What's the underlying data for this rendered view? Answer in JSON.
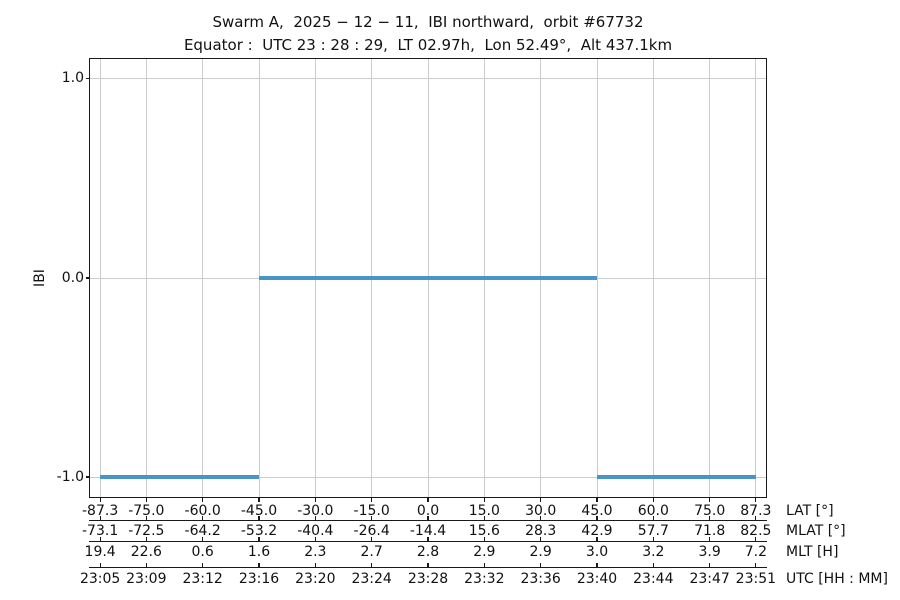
{
  "title": "Swarm A,  2025 − 12 − 11,  IBI northward,  orbit #67732",
  "subtitle": "Equator :  UTC 23 : 28 : 29,  LT 02.97h,  Lon 52.49°,  Alt 437.1km",
  "chart_data": {
    "type": "line",
    "title": "Swarm A,  2025 − 12 − 11,  IBI northward,  orbit #67732",
    "subtitle": "Equator :  UTC 23 : 28 : 29,  LT 02.97h,  Lon 52.49°,  Alt 437.1km",
    "ylabel": "IBI",
    "xlim": [
      -90,
      90
    ],
    "ylim": [
      -1.1,
      1.1
    ],
    "grid": true,
    "legend": "none",
    "colors": {
      "line": "#4a95c8",
      "grid": "#cccccc",
      "spine": "#1a1a1a",
      "text": "#111111",
      "background": "#ffffff"
    },
    "yticks": [
      {
        "value": 1.0,
        "label": "1.0"
      },
      {
        "value": 0.0,
        "label": "0.0"
      },
      {
        "value": -1.0,
        "label": "-1.0"
      }
    ],
    "segments": [
      {
        "y": -1.0,
        "x_start": -87.3,
        "x_end": -45.0
      },
      {
        "y": 0.0,
        "x_start": -45.0,
        "x_end": 45.0
      },
      {
        "y": -1.0,
        "x_start": 45.0,
        "x_end": 87.3
      }
    ],
    "x_ticks": [
      -87.3,
      -75.0,
      -60.0,
      -45.0,
      -30.0,
      -15.0,
      0.0,
      15.0,
      30.0,
      45.0,
      60.0,
      75.0,
      87.3
    ],
    "x_axis_rows": [
      {
        "name": "LAT [°]",
        "labels": [
          "-87.3",
          "-75.0",
          "-60.0",
          "-45.0",
          "-30.0",
          "-15.0",
          "0.0",
          "15.0",
          "30.0",
          "45.0",
          "60.0",
          "75.0",
          "87.3"
        ]
      },
      {
        "name": "MLAT [°]",
        "labels": [
          "-73.1",
          "-72.5",
          "-64.2",
          "-53.2",
          "-40.4",
          "-26.4",
          "-14.4",
          "15.6",
          "28.3",
          "42.9",
          "57.7",
          "71.8",
          "82.5"
        ]
      },
      {
        "name": "MLT [H]",
        "labels": [
          "19.4",
          "22.6",
          "0.6",
          "1.6",
          "2.3",
          "2.7",
          "2.8",
          "2.9",
          "2.9",
          "3.0",
          "3.2",
          "3.9",
          "7.2"
        ]
      },
      {
        "name": "UTC [HH : MM]",
        "labels": [
          "23:05",
          "23:09",
          "23:12",
          "23:16",
          "23:20",
          "23:24",
          "23:28",
          "23:32",
          "23:36",
          "23:40",
          "23:44",
          "23:47",
          "23:51"
        ]
      }
    ]
  }
}
